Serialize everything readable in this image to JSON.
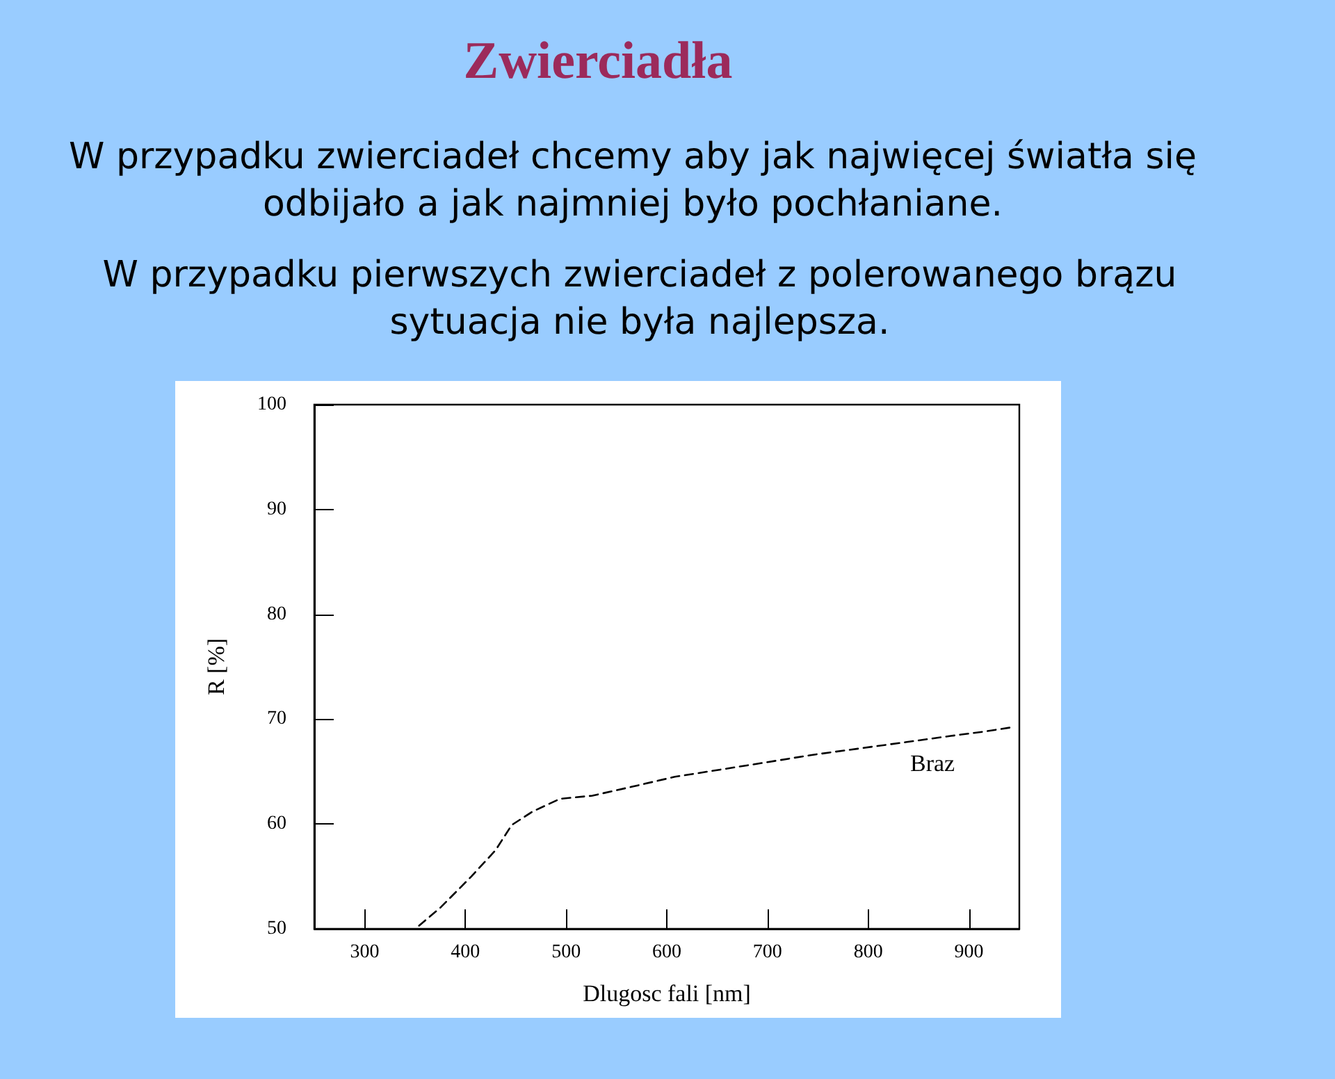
{
  "chart_data": {
    "type": "line",
    "title": "Zwierciadła",
    "subtitle": "W przypadku zwierciadeł chcemy aby jak najwięcej światła się odbijało a jak najmniej było pochłaniane.",
    "annotations": [
      "W przypadku pierwszych zwierciadeł z polerowanego brązu sytuacja nie była najlepsza."
    ],
    "xlabel": "Dlugosc fali [nm]",
    "ylabel": "R [%]",
    "xlim": [
      250,
      950
    ],
    "xticks": [
      300,
      400,
      500,
      600,
      700,
      800,
      900
    ],
    "ylim": [
      50,
      100
    ],
    "yticks": [
      50,
      60,
      70,
      80,
      90,
      100
    ],
    "grid": false,
    "legend": false,
    "marker": "none",
    "line_style": "dashed",
    "series": [
      {
        "name": "Braz",
        "color": "#000000",
        "x": [
          354,
          375,
          406,
          430,
          446,
          467,
          494,
          526,
          563,
          608,
          654,
          700,
          745,
          791,
          837,
          882,
          914,
          941
        ],
        "values": [
          50.3,
          52.0,
          55.0,
          57.5,
          59.9,
          61.2,
          62.4,
          62.7,
          63.5,
          64.5,
          65.2,
          65.9,
          66.6,
          67.2,
          67.8,
          68.4,
          68.8,
          69.2
        ]
      }
    ]
  }
}
